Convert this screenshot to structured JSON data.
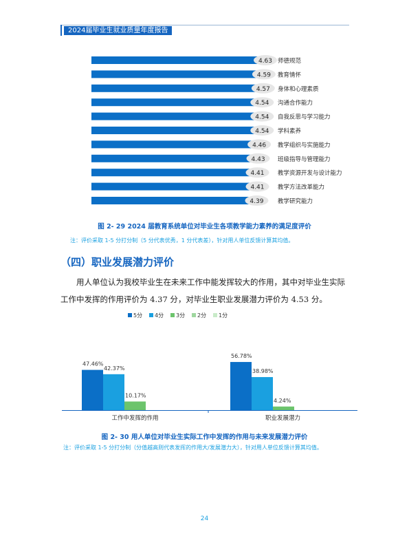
{
  "header": {
    "title": "2024届毕业生就业质量年度报告"
  },
  "chart_data": [
    {
      "type": "bar",
      "orientation": "horizontal",
      "categories": [
        "师德规范",
        "教育情怀",
        "身体和心理素质",
        "沟通合作能力",
        "自我反思与学习能力",
        "学科素养",
        "教学组织与实施能力",
        "班级指导与管理能力",
        "教学资源开发与设计能力",
        "教学方法改革能力",
        "教学研究能力"
      ],
      "values": [
        4.63,
        4.59,
        4.57,
        4.54,
        4.54,
        4.54,
        4.46,
        4.43,
        4.41,
        4.41,
        4.39
      ],
      "value_labels": [
        "4.63",
        "4.59",
        "4.57",
        "4.54",
        "4.54",
        "4.54",
        "4.46",
        "4.43",
        "4.41",
        "4.41",
        "4.39"
      ],
      "color": "#0b6fc7"
    },
    {
      "type": "bar",
      "categories": [
        "工作中发挥的作用",
        "职业发展潜力"
      ],
      "series": [
        {
          "name": "5分",
          "color": "#0b6fc7",
          "values": [
            47.46,
            56.78
          ],
          "labels": [
            "47.46%",
            "56.78%"
          ]
        },
        {
          "name": "4分",
          "color": "#1aa0e0",
          "values": [
            42.37,
            38.98
          ],
          "labels": [
            "42.37%",
            "38.98%"
          ]
        },
        {
          "name": "3分",
          "color": "#6cc46c",
          "values": [
            10.17,
            4.24
          ],
          "labels": [
            "10.17%",
            "4.24%"
          ]
        },
        {
          "name": "2分",
          "color": "#9fd79f",
          "values": [
            0,
            0
          ],
          "labels": [
            "",
            ""
          ]
        },
        {
          "name": "1分",
          "color": "#c9ebc9",
          "values": [
            0,
            0
          ],
          "labels": [
            "",
            ""
          ]
        }
      ],
      "legend": "top"
    }
  ],
  "figure29": {
    "caption": "图 2- 29  2024 届教育系统单位对毕业生各项教学能力素养的满足度评价",
    "note": "注：评价采取 1-5 分打分制（5 分代表优秀，1 分代表差），针对用人单位反馈计算其均值。"
  },
  "section": {
    "title": "（四）职业发展潜力评价"
  },
  "paragraph": {
    "line1": "用人单位认为我校毕业生在未来工作中能发挥较大的作用，其中对毕业生实际",
    "line2": "工作中发挥的作用评价为 4.37 分，对毕业生职业发展潜力评价为 4.53 分。"
  },
  "figure30": {
    "caption": "图 2- 30  用人单位对毕业生实际工作中发挥的作用与未来发展潜力评价",
    "note": "注：评价采取 1-5 分打分制（分值越高则代表发挥的作用大/发展潜力大），针对用人单位反馈计算其均值。"
  },
  "page_number": "24"
}
